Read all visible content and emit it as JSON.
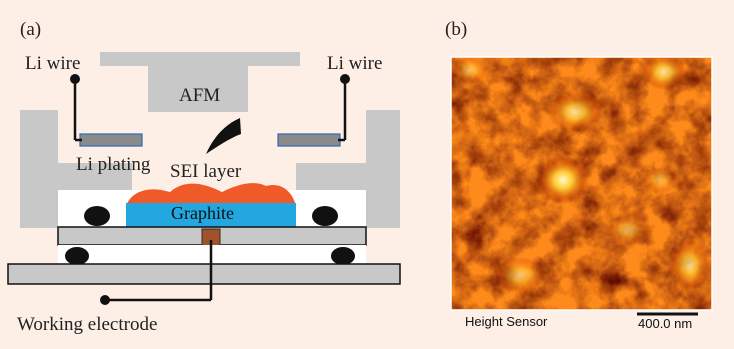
{
  "panel_a": {
    "label": "(a)",
    "li_wire_left": "Li wire",
    "li_wire_right": "Li wire",
    "afm": "AFM",
    "li_plating": "Li plating",
    "sei_layer": "SEI layer",
    "graphite": "Graphite",
    "working_electrode": "Working electrode"
  },
  "panel_b": {
    "label": "(b)",
    "height_sensor": "Height Sensor",
    "scale_bar": "400.0 nm"
  },
  "colors": {
    "background": "#fdeee6",
    "housing": "#c8c8c8",
    "graphite": "#22a7e0",
    "sei": "#f05a28",
    "electrode": "#a0522d",
    "afm_dark": "#3a0000",
    "afm_bright": "#fff6b0"
  }
}
